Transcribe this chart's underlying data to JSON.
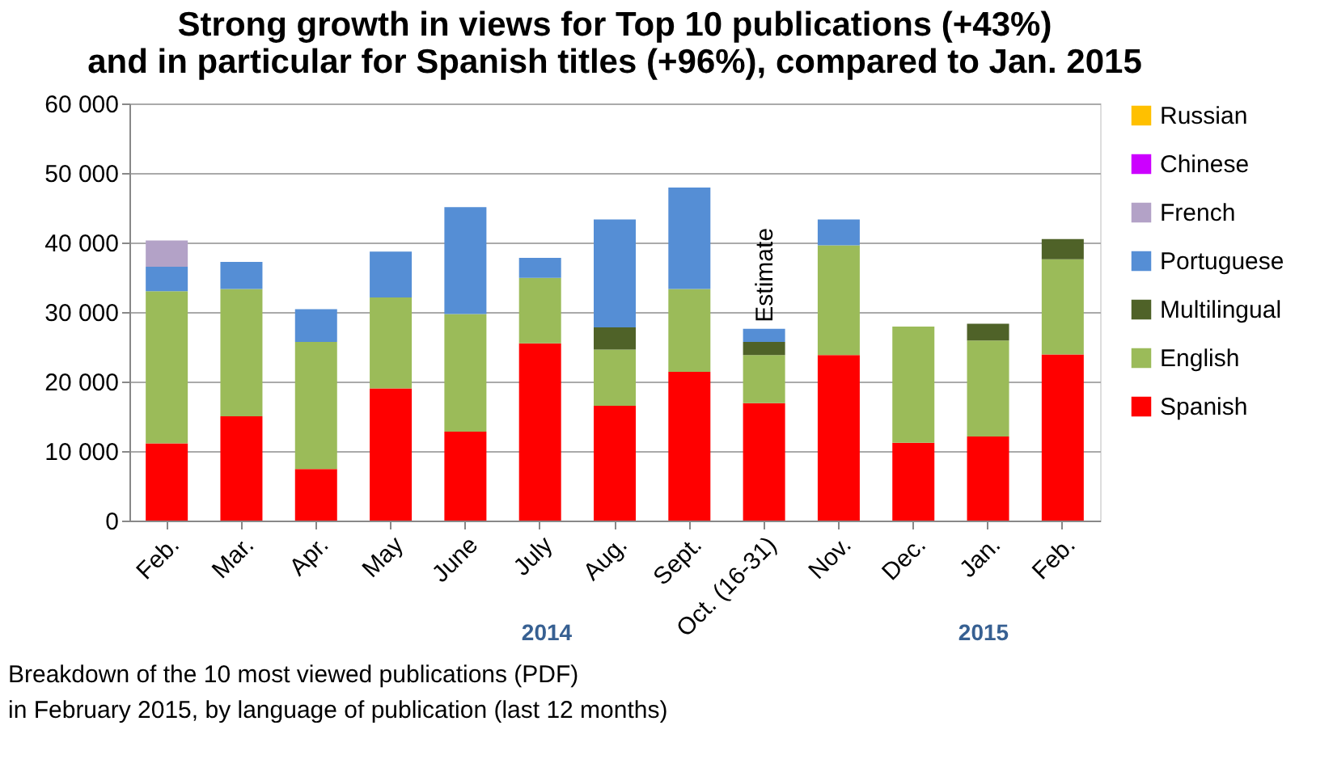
{
  "chart_data": {
    "type": "bar",
    "stacked": true,
    "title": "Strong growth in views for Top 10 publications (+43%)\nand in particular for Spanish titles (+96%), compared to Jan. 2015",
    "categories": [
      "Feb.",
      "Mar.",
      "Apr.",
      "May",
      "June",
      "July",
      "Aug.",
      "Sept.",
      "Oct. (16-31)",
      "Nov.",
      "Dec.",
      "Jan.",
      "Feb."
    ],
    "series": [
      {
        "name": "Spanish",
        "color": "#ff0000",
        "values": [
          11100,
          15000,
          7400,
          19000,
          12800,
          25500,
          16500,
          21400,
          16900,
          23800,
          11200,
          12100,
          23900
        ]
      },
      {
        "name": "English",
        "color": "#9bbb59",
        "values": [
          21900,
          18300,
          18300,
          13100,
          16900,
          9400,
          8100,
          11900,
          6900,
          15800,
          16700,
          13800,
          13700
        ]
      },
      {
        "name": "Multilingual",
        "color": "#4f6228",
        "values": [
          null,
          null,
          null,
          null,
          null,
          null,
          3200,
          null,
          1900,
          null,
          null,
          2400,
          2900
        ]
      },
      {
        "name": "Portuguese",
        "color": "#558ed5",
        "values": [
          3500,
          3900,
          4700,
          6600,
          15400,
          2900,
          15500,
          14600,
          1900,
          3700,
          null,
          null,
          null
        ]
      },
      {
        "name": "French",
        "color": "#b3a2c7",
        "values": [
          3800,
          null,
          null,
          null,
          null,
          null,
          null,
          null,
          null,
          null,
          null,
          null,
          null
        ]
      },
      {
        "name": "Chinese",
        "color": "#cc00ff",
        "values": [
          null,
          null,
          null,
          null,
          null,
          null,
          null,
          null,
          null,
          null,
          null,
          null,
          null
        ]
      },
      {
        "name": "Russian",
        "color": "#ffc000",
        "values": [
          null,
          null,
          null,
          null,
          null,
          null,
          null,
          null,
          null,
          null,
          null,
          null,
          null
        ]
      }
    ],
    "ylim": [
      0,
      60000
    ],
    "yticks": [
      {
        "value": 0,
        "label": "0"
      },
      {
        "value": 10000,
        "label": "10 000"
      },
      {
        "value": 20000,
        "label": "20 000"
      },
      {
        "value": 30000,
        "label": "30 000"
      },
      {
        "value": 40000,
        "label": "40 000"
      },
      {
        "value": 50000,
        "label": "50 000"
      },
      {
        "value": 60000,
        "label": "60 000"
      }
    ],
    "grid": "y",
    "legend": "right",
    "annotations": [
      {
        "text": "Estimate",
        "x": "Oct. (16-31)",
        "y": 27600
      },
      "2014",
      "2015",
      "Breakdown of the 10 most viewed publications  (PDF)\nin February 2015, by language of publication (last 12 months)"
    ]
  }
}
